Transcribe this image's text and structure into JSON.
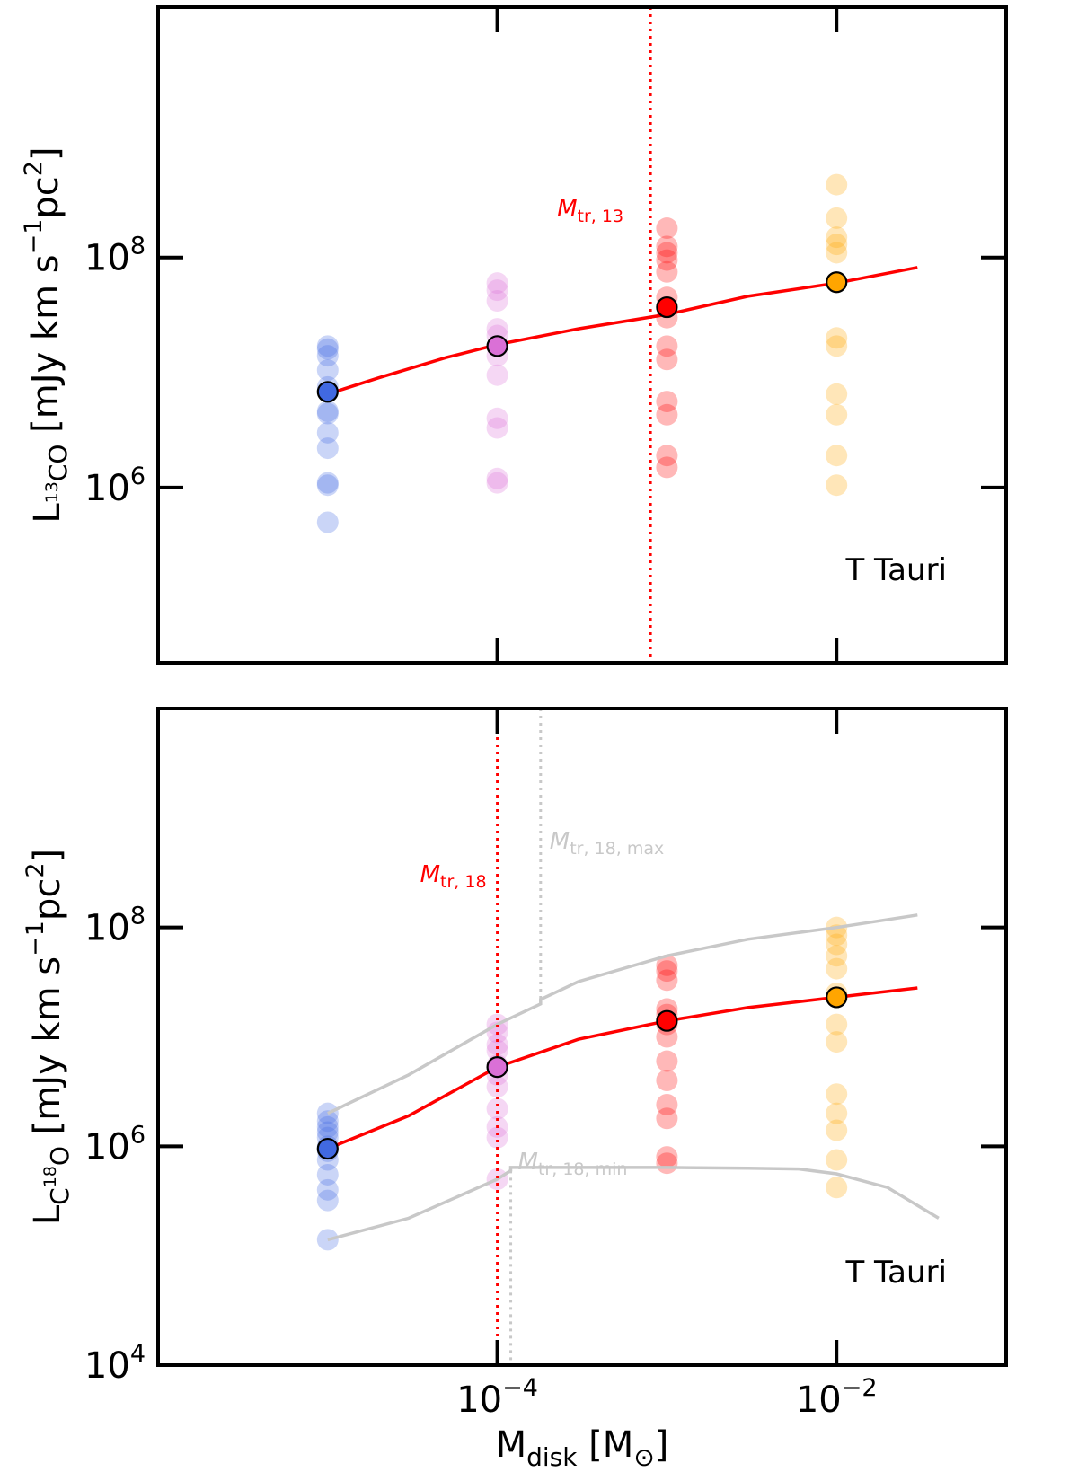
{
  "colors": {
    "model_line": "#ff0000",
    "bound_line": "#c8c8c8",
    "series": [
      "#4169e1",
      "#da70d6",
      "#ff0000",
      "#ffa500"
    ]
  },
  "xlabel": {
    "base": "M",
    "sub": "disk",
    "rest": " [M",
    "sun": "⊙",
    "close": "]"
  },
  "x_tick_labels": [
    {
      "base": "10",
      "exp": "−4",
      "x": 0.0001
    },
    {
      "base": "10",
      "exp": "−2",
      "x": 0.01
    }
  ],
  "chart_data": [
    {
      "type": "scatter",
      "panel_label": "T Tauri",
      "ylabel": {
        "pre": "L",
        "iso": "13",
        "mol": "CO",
        "rest": " [mJy km s",
        "exp1": "−1",
        "mid": "pc",
        "exp2": "2",
        "close": "]"
      },
      "xlim": [
        1e-06,
        0.1
      ],
      "ylim": [
        10000,
        10000000000
      ],
      "x_scale": "log",
      "y_scale": "log",
      "visible_ylim": [
        30000,
        15000000000
      ],
      "y_tick_labels": [
        {
          "base": "10",
          "exp": "6",
          "y": 1000000
        },
        {
          "base": "10",
          "exp": "8",
          "y": 100000000
        }
      ],
      "x": [
        1e-05,
        0.0001,
        0.001,
        0.01
      ],
      "clouds": [
        {
          "x": 1e-05,
          "values": [
            17000000,
            16000000,
            14000000,
            10500000,
            7500000,
            6800000,
            4600000,
            4400000,
            3000000,
            2200000,
            1100000,
            1050000,
            500000
          ]
        },
        {
          "x": 0.0001,
          "values": [
            60000000,
            52000000,
            42000000,
            24000000,
            21000000,
            14000000,
            9500000,
            4000000,
            3300000,
            1200000,
            1100000
          ]
        },
        {
          "x": 0.001,
          "values": [
            180000000,
            125000000,
            110000000,
            95000000,
            75000000,
            45000000,
            30000000,
            17000000,
            13000000,
            5600000,
            4300000,
            1900000,
            1500000
          ]
        },
        {
          "x": 0.01,
          "values": [
            430000000,
            220000000,
            150000000,
            130000000,
            110000000,
            20000000,
            17000000,
            6500000,
            4300000,
            1900000,
            1050000
          ]
        }
      ],
      "means": [
        6800000,
        17000000,
        37000000,
        61000000
      ],
      "model": {
        "x": [
          1e-05,
          2e-05,
          5e-05,
          0.0001,
          0.0003,
          0.001,
          0.003,
          0.01,
          0.03
        ],
        "y": [
          6500000,
          9000000,
          13500000,
          17500000,
          24000000,
          32000000,
          46000000,
          60000000,
          82000000
        ]
      },
      "vlines": [
        {
          "x": 0.0008,
          "color": "#ff0000",
          "label": "M",
          "label_sub": "tr, 13"
        }
      ]
    },
    {
      "type": "scatter",
      "panel_label": "T Tauri",
      "ylabel": {
        "pre": "L",
        "iso": "18",
        "molA": "C",
        "molB": "O",
        "rest": " [mJy km s",
        "exp1": "−1",
        "mid": "pc",
        "exp2": "2",
        "close": "]"
      },
      "xlim": [
        1e-06,
        0.1
      ],
      "ylim": [
        10000,
        10000000000
      ],
      "x_scale": "log",
      "y_scale": "log",
      "y_tick_labels": [
        {
          "base": "10",
          "exp": "4",
          "y": 10000
        },
        {
          "base": "10",
          "exp": "6",
          "y": 1000000
        },
        {
          "base": "10",
          "exp": "8",
          "y": 100000000
        }
      ],
      "x": [
        1e-05,
        0.0001,
        0.001,
        0.01
      ],
      "clouds": [
        {
          "x": 1e-05,
          "values": [
            2000000,
            1700000,
            1500000,
            1350000,
            1200000,
            1000000,
            900000,
            750000,
            550000,
            400000,
            320000,
            140000
          ]
        },
        {
          "x": 0.0001,
          "values": [
            13000000,
            11000000,
            8500000,
            7500000,
            5500000,
            4500000,
            3500000,
            2200000,
            1500000,
            1200000,
            500000
          ]
        },
        {
          "x": 0.001,
          "values": [
            45000000,
            40000000,
            33000000,
            18000000,
            16000000,
            13000000,
            10000000,
            6000000,
            4000000,
            2400000,
            1800000,
            800000,
            700000
          ]
        },
        {
          "x": 0.01,
          "values": [
            100000000,
            85000000,
            70000000,
            55000000,
            42000000,
            25000000,
            13000000,
            9000000,
            3000000,
            2000000,
            1400000,
            750000,
            420000
          ]
        }
      ],
      "means": [
        950000,
        5300000,
        14000000,
        23000000
      ],
      "model": {
        "x": [
          1e-05,
          3e-05,
          0.0001,
          0.0003,
          0.001,
          0.003,
          0.01,
          0.03
        ],
        "y": [
          950000,
          1900000,
          5300000,
          9500000,
          14000000,
          18500000,
          23000000,
          28000000
        ]
      },
      "upper": {
        "x": [
          1e-05,
          3e-05,
          0.0001,
          0.00018,
          0.00018,
          0.0003,
          0.001,
          0.003,
          0.01,
          0.03
        ],
        "y": [
          2000000,
          4500000,
          13000000,
          20000000,
          22000000,
          32000000,
          55000000,
          78000000,
          100000000,
          130000000
        ]
      },
      "lower": {
        "x": [
          1e-05,
          3e-05,
          0.0001,
          0.00012,
          0.00012,
          0.001,
          0.003,
          0.006,
          0.01,
          0.02,
          0.04
        ],
        "y": [
          140000,
          220000,
          500000,
          600000,
          640000,
          640000,
          630000,
          620000,
          560000,
          420000,
          220000
        ]
      },
      "vlines": [
        {
          "x": 0.0001,
          "color": "#ff0000",
          "label": "M",
          "label_sub": "tr, 18"
        },
        {
          "x": 0.00018,
          "color": "#c8c8c8",
          "label": "M",
          "label_sub": "tr, 18, max"
        },
        {
          "x": 0.00012,
          "color": "#c8c8c8",
          "label": "M",
          "label_sub": "tr, 18, min"
        }
      ]
    }
  ]
}
